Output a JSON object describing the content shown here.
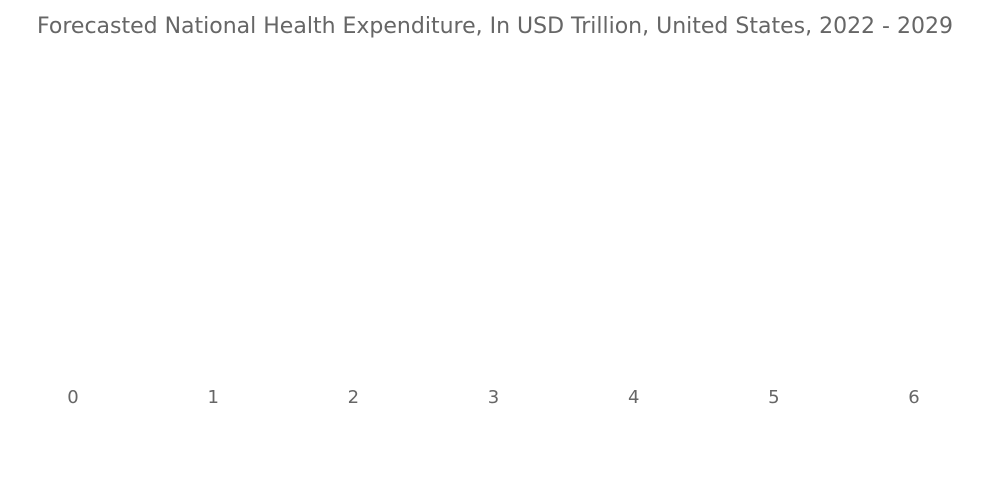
{
  "chart_data": {
    "type": "bar",
    "orientation": "horizontal",
    "title": "Forecasted National Health Expenditure, In USD Trillion, United States, 2022 - 2029",
    "categories": [],
    "values": [],
    "xlabel": "",
    "ylabel": "",
    "xlim": [
      0,
      6
    ],
    "x_ticks": [
      "0",
      "1",
      "2",
      "3",
      "4",
      "5",
      "6"
    ],
    "grid": false,
    "legend": "none",
    "colors": {
      "text": "#666666",
      "background": "#ffffff"
    }
  }
}
